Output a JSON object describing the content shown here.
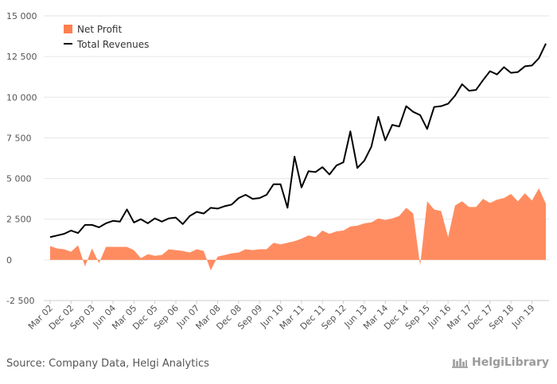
{
  "chart_data": {
    "type": "line",
    "title": "",
    "xlabel": "",
    "ylabel": "",
    "ylim": [
      -2500,
      15000
    ],
    "yticks": [
      -2500,
      0,
      2500,
      5000,
      7500,
      10000,
      12500,
      15000
    ],
    "ytick_labels": [
      "-2 500",
      "0",
      "2 500",
      "5 000",
      "7 500",
      "10 000",
      "12 500",
      "15 000"
    ],
    "xtick_labels": [
      "Mar 02",
      "Dec 02",
      "Sep 03",
      "Jun 04",
      "Mar 05",
      "Dec 05",
      "Sep 06",
      "Jun 07",
      "Mar 08",
      "Dec 08",
      "Sep 09",
      "Jun 10",
      "Mar 11",
      "Dec 11",
      "Sep 12",
      "Jun 13",
      "Mar 14",
      "Dec 14",
      "Sep 15",
      "Jun 16",
      "Mar 17",
      "Dec 17",
      "Sep 18",
      "Jun 19"
    ],
    "grid": true,
    "legend_placement": "top-left",
    "series": [
      {
        "name": "Net Profit",
        "kind": "area",
        "color": "#FF7F4F",
        "values": [
          850,
          700,
          650,
          500,
          900,
          -400,
          700,
          -200,
          800,
          800,
          800,
          800,
          600,
          100,
          350,
          250,
          300,
          650,
          600,
          550,
          450,
          650,
          550,
          -650,
          200,
          300,
          400,
          450,
          650,
          600,
          650,
          650,
          1050,
          950,
          1050,
          1150,
          1300,
          1500,
          1400,
          1800,
          1600,
          1750,
          1800,
          2050,
          2100,
          2250,
          2300,
          2550,
          2450,
          2550,
          2700,
          3200,
          2850,
          -350,
          3600,
          3100,
          3000,
          1400,
          3350,
          3600,
          3250,
          3250,
          3750,
          3500,
          3700,
          3800,
          4050,
          3600,
          4100,
          3650,
          4400,
          3450
        ]
      },
      {
        "name": "Total Revenues",
        "kind": "line",
        "color": "#000000",
        "values": [
          1400,
          1500,
          1600,
          1800,
          1650,
          2150,
          2150,
          2000,
          2250,
          2400,
          2350,
          3100,
          2300,
          2500,
          2250,
          2550,
          2350,
          2550,
          2600,
          2200,
          2700,
          2950,
          2850,
          3200,
          3150,
          3300,
          3400,
          3800,
          4000,
          3750,
          3800,
          4000,
          4650,
          4650,
          3200,
          6350,
          4450,
          5450,
          5400,
          5700,
          5250,
          5800,
          6000,
          7900,
          5650,
          6100,
          6950,
          8800,
          7350,
          8300,
          8200,
          9450,
          9100,
          8900,
          8050,
          9400,
          9450,
          9600,
          10100,
          10800,
          10400,
          10450,
          11050,
          11600,
          11400,
          11850,
          11500,
          11550,
          11900,
          11950,
          12400,
          13300
        ]
      }
    ]
  },
  "footer": {
    "source": "Source: Company Data, Helgi Analytics",
    "brand": "HelgiLibrary"
  }
}
